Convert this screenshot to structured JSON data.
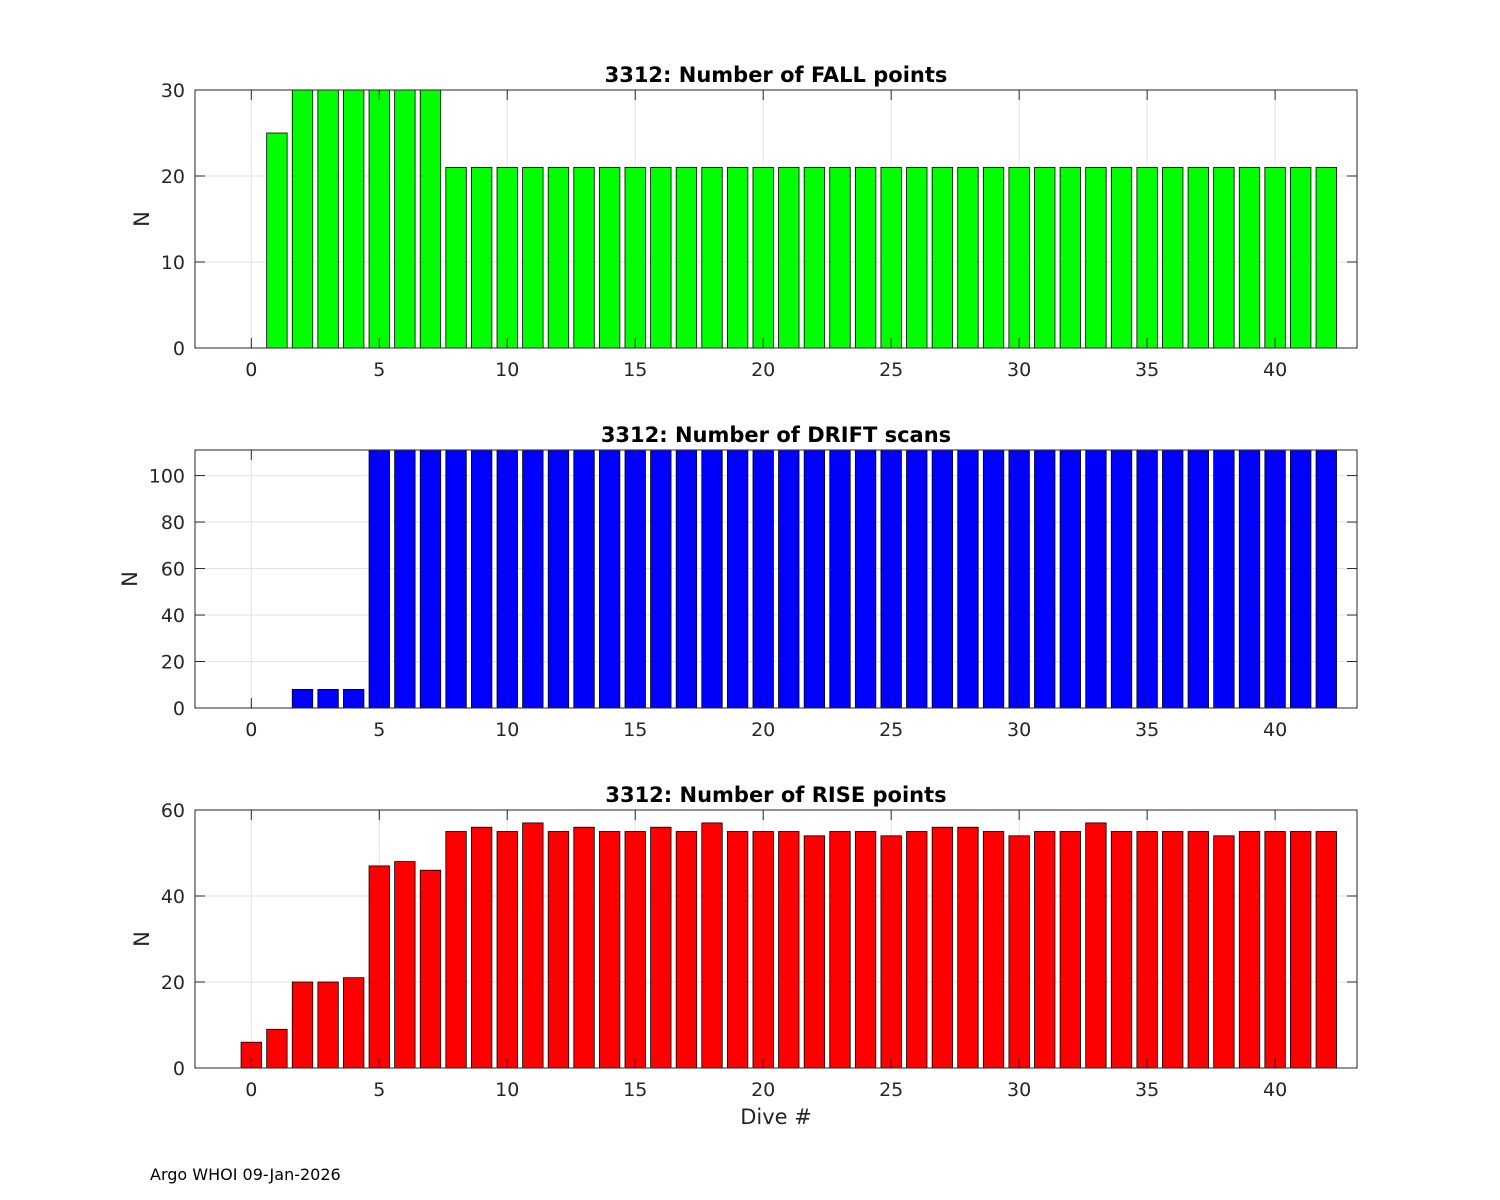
{
  "chart_data": [
    {
      "type": "bar",
      "title": "3312: Number of FALL points",
      "xlabel": "",
      "ylabel": "N",
      "color": "#00ff00",
      "xlim": [
        -2.2,
        43.2
      ],
      "ylim": [
        0,
        30
      ],
      "xticks": [
        0,
        5,
        10,
        15,
        20,
        25,
        30,
        35,
        40
      ],
      "yticks": [
        0,
        10,
        20,
        30
      ],
      "grid": true,
      "x": [
        0,
        1,
        2,
        3,
        4,
        5,
        6,
        7,
        8,
        9,
        10,
        11,
        12,
        13,
        14,
        15,
        16,
        17,
        18,
        19,
        20,
        21,
        22,
        23,
        24,
        25,
        26,
        27,
        28,
        29,
        30,
        31,
        32,
        33,
        34,
        35,
        36,
        37,
        38,
        39,
        40,
        41,
        42
      ],
      "values": [
        0,
        25,
        30,
        30,
        30,
        30,
        30,
        30,
        21,
        21,
        21,
        21,
        21,
        21,
        21,
        21,
        21,
        21,
        21,
        21,
        21,
        21,
        21,
        21,
        21,
        21,
        21,
        21,
        21,
        21,
        21,
        21,
        21,
        21,
        21,
        21,
        21,
        21,
        21,
        21,
        21,
        21,
        21
      ]
    },
    {
      "type": "bar",
      "title": "3312: Number of DRIFT scans",
      "xlabel": "",
      "ylabel": "N",
      "color": "#0000ff",
      "xlim": [
        -2.2,
        43.2
      ],
      "ylim": [
        0,
        111
      ],
      "xticks": [
        0,
        5,
        10,
        15,
        20,
        25,
        30,
        35,
        40
      ],
      "yticks": [
        0,
        20,
        40,
        60,
        80,
        100
      ],
      "grid": true,
      "x": [
        -1,
        0,
        1,
        2,
        3,
        4,
        5,
        6,
        7,
        8,
        9,
        10,
        11,
        12,
        13,
        14,
        15,
        16,
        17,
        18,
        19,
        20,
        21,
        22,
        23,
        24,
        25,
        26,
        27,
        28,
        29,
        30,
        31,
        32,
        33,
        34,
        35,
        36,
        37,
        38,
        39,
        40,
        41,
        42
      ],
      "values": [
        0,
        0,
        0,
        8,
        8,
        8,
        120,
        120,
        120,
        120,
        120,
        120,
        120,
        120,
        120,
        120,
        120,
        120,
        120,
        120,
        120,
        120,
        120,
        120,
        120,
        120,
        120,
        120,
        120,
        120,
        120,
        120,
        120,
        120,
        120,
        120,
        120,
        120,
        120,
        120,
        120,
        120,
        120,
        120
      ]
    },
    {
      "type": "bar",
      "title": "3312: Number of RISE points",
      "xlabel": "Dive #",
      "ylabel": "N",
      "color": "#ff0000",
      "xlim": [
        -2.2,
        43.2
      ],
      "ylim": [
        0,
        60
      ],
      "xticks": [
        0,
        5,
        10,
        15,
        20,
        25,
        30,
        35,
        40
      ],
      "yticks": [
        0,
        20,
        40,
        60
      ],
      "grid": true,
      "x": [
        0,
        1,
        2,
        3,
        4,
        5,
        6,
        7,
        8,
        9,
        10,
        11,
        12,
        13,
        14,
        15,
        16,
        17,
        18,
        19,
        20,
        21,
        22,
        23,
        24,
        25,
        26,
        27,
        28,
        29,
        30,
        31,
        32,
        33,
        34,
        35,
        36,
        37,
        38,
        39,
        40,
        41,
        42
      ],
      "values": [
        6,
        9,
        20,
        20,
        21,
        47,
        48,
        46,
        55,
        56,
        55,
        57,
        55,
        56,
        55,
        55,
        56,
        55,
        57,
        55,
        55,
        55,
        54,
        55,
        55,
        54,
        55,
        56,
        56,
        55,
        54,
        55,
        55,
        57,
        55,
        55,
        55,
        55,
        54,
        55,
        55,
        55,
        55
      ]
    }
  ],
  "footer": "Argo WHOI 09-Jan-2026"
}
